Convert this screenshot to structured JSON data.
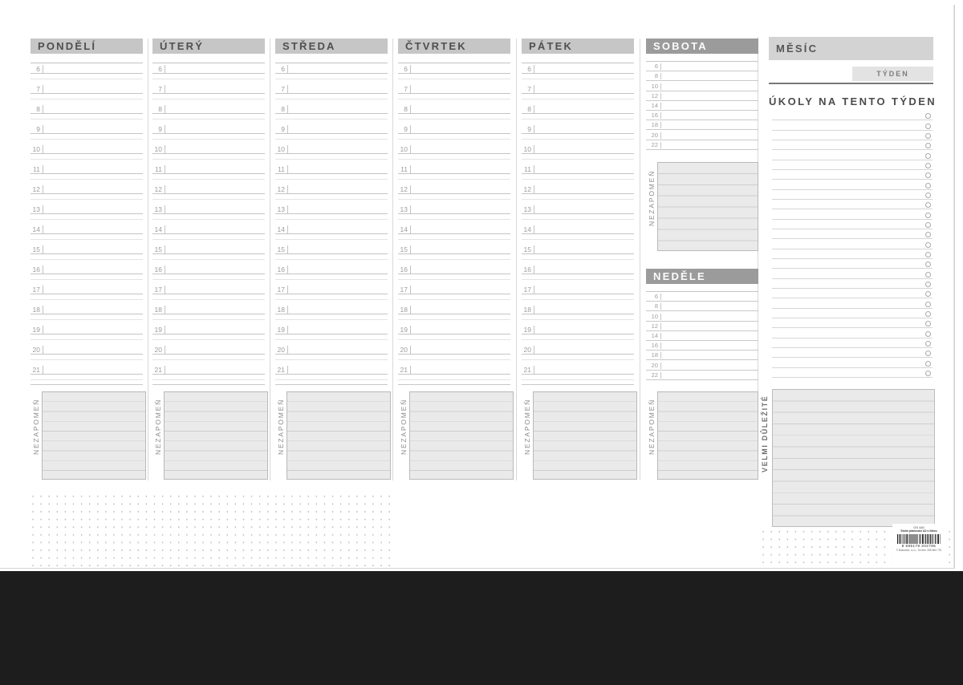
{
  "planner": {
    "days": [
      {
        "label": "PONDĚLÍ",
        "hours": [
          "6",
          "7",
          "8",
          "9",
          "10",
          "11",
          "12",
          "13",
          "14",
          "15",
          "16",
          "17",
          "18",
          "19",
          "20",
          "21"
        ]
      },
      {
        "label": "ÚTERÝ",
        "hours": [
          "6",
          "7",
          "8",
          "9",
          "10",
          "11",
          "12",
          "13",
          "14",
          "15",
          "16",
          "17",
          "18",
          "19",
          "20",
          "21"
        ]
      },
      {
        "label": "STŘEDA",
        "hours": [
          "6",
          "7",
          "8",
          "9",
          "10",
          "11",
          "12",
          "13",
          "14",
          "15",
          "16",
          "17",
          "18",
          "19",
          "20",
          "21"
        ]
      },
      {
        "label": "ČTVRTEK",
        "hours": [
          "6",
          "7",
          "8",
          "9",
          "10",
          "11",
          "12",
          "13",
          "14",
          "15",
          "16",
          "17",
          "18",
          "19",
          "20",
          "21"
        ]
      },
      {
        "label": "PÁTEK",
        "hours": [
          "6",
          "7",
          "8",
          "9",
          "10",
          "11",
          "12",
          "13",
          "14",
          "15",
          "16",
          "17",
          "18",
          "19",
          "20",
          "21"
        ]
      }
    ],
    "saturday": {
      "label": "SOBOTA",
      "hours": [
        "6",
        "8",
        "10",
        "12",
        "14",
        "16",
        "18",
        "20",
        "22"
      ]
    },
    "sunday": {
      "label": "NEDĚLE",
      "hours": [
        "6",
        "8",
        "10",
        "12",
        "14",
        "16",
        "18",
        "20",
        "22"
      ]
    },
    "notes_label": "NEZAPOMEŇ",
    "sidebar": {
      "month_label": "MĚSÍC",
      "week_label": "TÝDEN",
      "tasks_title": "ÚKOLY NA TENTO TÝDEN",
      "task_rows": 27,
      "important_label": "VELMI DŮLEŽITÉ"
    },
    "footer": {
      "product_code": "OS 440",
      "product_name": "Stolní plánovací A2 s lištou",
      "ean": "8 595179 202796",
      "publisher": "© Baloušek, s.r.o., Tel./fax: 286 584 776"
    },
    "colors": {
      "weekday_header_bg": "#c6c6c6",
      "weekend_header_bg": "#9b9b9b",
      "month_header_bg": "#d3d3d3",
      "week_box_bg": "#e3e3e3",
      "note_box_bg": "#eaeaea",
      "hour_line": "#c4c4c4",
      "half_hour_line": "#e4e4e4",
      "header_text": "#4f4f4f",
      "desk_strip": "#1d1d1d"
    }
  }
}
